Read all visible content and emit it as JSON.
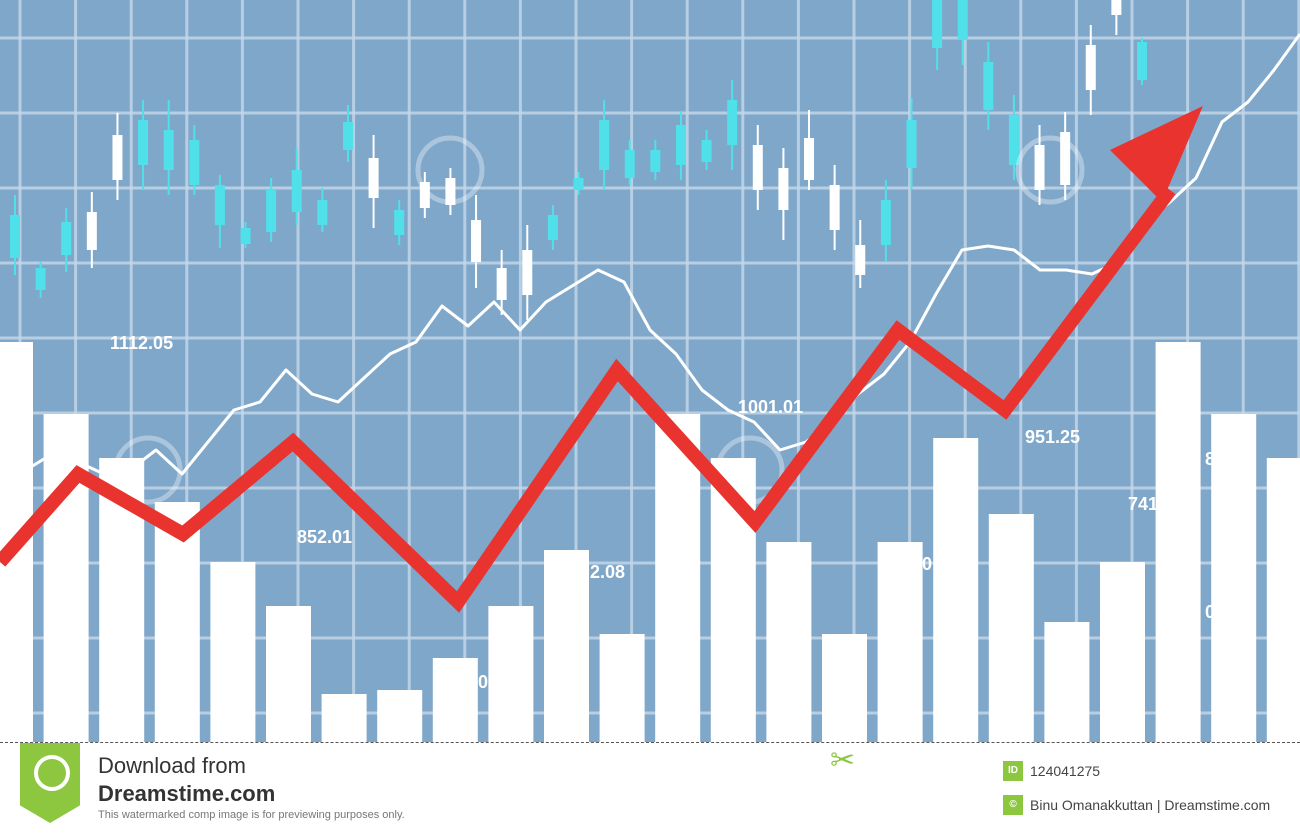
{
  "chart_data": {
    "type": "bar",
    "title": "",
    "xlabel": "",
    "ylabel": "",
    "grid": true,
    "colors": {
      "background": "#7fa7ca",
      "bars": "#ffffff",
      "trend_arrow": "#e8332e",
      "line": "#ffffff",
      "candle_up": "#4fe0ea",
      "candle_down": "#ffffff",
      "grid": "#c5d8ea"
    },
    "bars": {
      "values_percent": [
        100,
        82,
        71,
        60,
        45,
        34,
        12,
        13,
        21,
        34,
        48,
        27,
        82,
        71,
        50,
        27,
        50,
        76,
        57,
        30,
        45,
        100,
        82,
        71
      ]
    },
    "trend_arrow": {
      "values_percent": [
        45,
        67,
        52,
        75,
        35,
        93,
        55,
        103,
        83,
        138
      ]
    },
    "line_series": {
      "values_percent": [
        74,
        68,
        72,
        70,
        67,
        68,
        73,
        67,
        75,
        83,
        85,
        93,
        87,
        85,
        91,
        97,
        100,
        109,
        104,
        110,
        103,
        110,
        114,
        118,
        115,
        103,
        97,
        88,
        83,
        80,
        73,
        75,
        80,
        87,
        92,
        100,
        112,
        123,
        124,
        123,
        118,
        118,
        117,
        120,
        130,
        135,
        141,
        155,
        160,
        168,
        177
      ]
    },
    "candles": [
      {
        "o": 542,
        "c": 585,
        "h": 605,
        "l": 525,
        "up": true
      },
      {
        "o": 510,
        "c": 532,
        "h": 538,
        "l": 502,
        "up": true
      },
      {
        "o": 545,
        "c": 578,
        "h": 592,
        "l": 528,
        "up": true
      },
      {
        "o": 550,
        "c": 588,
        "h": 608,
        "l": 532,
        "up": false
      },
      {
        "o": 620,
        "c": 665,
        "h": 687,
        "l": 600,
        "up": false
      },
      {
        "o": 635,
        "c": 680,
        "h": 700,
        "l": 610,
        "up": true
      },
      {
        "o": 630,
        "c": 670,
        "h": 700,
        "l": 605,
        "up": true
      },
      {
        "o": 615,
        "c": 660,
        "h": 675,
        "l": 605,
        "up": true
      },
      {
        "o": 575,
        "c": 615,
        "h": 625,
        "l": 552,
        "up": true
      },
      {
        "o": 556,
        "c": 572,
        "h": 578,
        "l": 552,
        "up": true
      },
      {
        "o": 568,
        "c": 610,
        "h": 622,
        "l": 558,
        "up": true
      },
      {
        "o": 588,
        "c": 630,
        "h": 652,
        "l": 575,
        "up": true
      },
      {
        "o": 575,
        "c": 600,
        "h": 612,
        "l": 568,
        "up": true
      },
      {
        "o": 650,
        "c": 678,
        "h": 695,
        "l": 638,
        "up": true
      },
      {
        "o": 602,
        "c": 642,
        "h": 665,
        "l": 572,
        "up": false
      },
      {
        "o": 565,
        "c": 590,
        "h": 600,
        "l": 555,
        "up": true
      },
      {
        "o": 592,
        "c": 618,
        "h": 628,
        "l": 582,
        "up": false
      },
      {
        "o": 595,
        "c": 622,
        "h": 632,
        "l": 585,
        "up": false
      },
      {
        "o": 538,
        "c": 580,
        "h": 605,
        "l": 512,
        "up": false
      },
      {
        "o": 500,
        "c": 532,
        "h": 550,
        "l": 485,
        "up": false
      },
      {
        "o": 505,
        "c": 550,
        "h": 575,
        "l": 480,
        "up": false
      },
      {
        "o": 560,
        "c": 585,
        "h": 595,
        "l": 550,
        "up": true
      },
      {
        "o": 610,
        "c": 622,
        "h": 628,
        "l": 605,
        "up": true
      },
      {
        "o": 630,
        "c": 680,
        "h": 700,
        "l": 610,
        "up": true
      },
      {
        "o": 622,
        "c": 650,
        "h": 660,
        "l": 615,
        "up": true
      },
      {
        "o": 628,
        "c": 650,
        "h": 660,
        "l": 620,
        "up": true
      },
      {
        "o": 635,
        "c": 675,
        "h": 688,
        "l": 620,
        "up": true
      },
      {
        "o": 638,
        "c": 660,
        "h": 670,
        "l": 630,
        "up": true
      },
      {
        "o": 655,
        "c": 700,
        "h": 720,
        "l": 630,
        "up": true
      },
      {
        "o": 610,
        "c": 655,
        "h": 675,
        "l": 590,
        "up": false
      },
      {
        "o": 590,
        "c": 632,
        "h": 652,
        "l": 560,
        "up": false
      },
      {
        "o": 620,
        "c": 662,
        "h": 690,
        "l": 610,
        "up": false
      },
      {
        "o": 570,
        "c": 615,
        "h": 635,
        "l": 550,
        "up": false
      },
      {
        "o": 525,
        "c": 555,
        "h": 580,
        "l": 512,
        "up": false
      },
      {
        "o": 555,
        "c": 600,
        "h": 620,
        "l": 538,
        "up": true
      },
      {
        "o": 632,
        "c": 680,
        "h": 702,
        "l": 610,
        "up": true
      },
      {
        "o": 752,
        "c": 800,
        "h": 800,
        "l": 730,
        "up": true
      },
      {
        "o": 760,
        "c": 800,
        "h": 800,
        "l": 735,
        "up": true
      },
      {
        "o": 690,
        "c": 738,
        "h": 758,
        "l": 670,
        "up": true
      },
      {
        "o": 635,
        "c": 685,
        "h": 705,
        "l": 620,
        "up": true
      },
      {
        "o": 610,
        "c": 655,
        "h": 675,
        "l": 595,
        "up": false
      },
      {
        "o": 615,
        "c": 668,
        "h": 688,
        "l": 600,
        "up": false
      },
      {
        "o": 710,
        "c": 755,
        "h": 775,
        "l": 685,
        "up": false
      },
      {
        "o": 785,
        "c": 800,
        "h": 800,
        "l": 765,
        "up": false
      },
      {
        "o": 720,
        "c": 758,
        "h": 762,
        "l": 715,
        "up": true
      }
    ],
    "data_labels": [
      "1112.05",
      "852.01",
      "1001.01",
      "951.25",
      "741",
      "2.08",
      "0",
      "0",
      "8 4",
      "0"
    ]
  },
  "footer": {
    "download_line1": "Download from",
    "download_line2": "Dreamstime.com",
    "disclaimer": "This watermarked comp image is for previewing purposes only.",
    "id_icon": "ID",
    "image_id": "124041275",
    "copyright_icon": "©",
    "credit": "Binu Omanakkuttan | Dreamstime.com",
    "icons": [
      "dreamstime-logo-icon",
      "scissors-icon"
    ]
  }
}
